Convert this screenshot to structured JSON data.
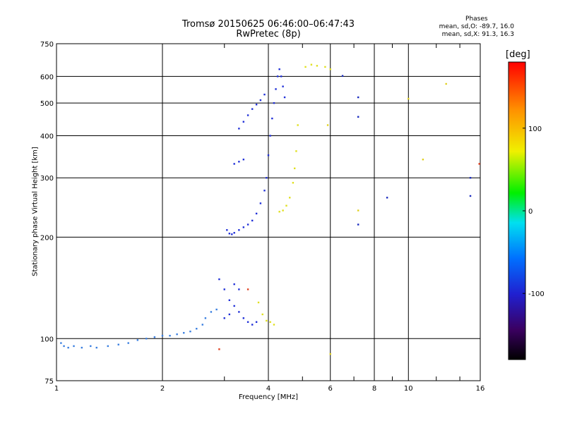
{
  "header": {
    "title_line1": "Tromsø 20150625 06:46:00–06:47:43",
    "title_line2": "RwPretec (8p)",
    "phases_title": "Phases",
    "phases_o": "mean, sd,O: -89.7, 16.0",
    "phases_x": "mean, sd,X:  91.3, 16.3"
  },
  "colorbar": {
    "title": "[deg]",
    "ticks": [
      "100",
      "0",
      "-100"
    ],
    "range": [
      -180,
      180
    ]
  },
  "chart_data": {
    "type": "scatter",
    "title": "Tromsø 20150625 06:46:00–06:47:43",
    "subtitle": "RwPretec (8p)",
    "xlabel": "Frequency [MHz]",
    "ylabel": "Stationary phase Virtual Height [km]",
    "xscale": "log",
    "yscale": "log",
    "xlim": [
      1,
      16
    ],
    "ylim": [
      75,
      750
    ],
    "xticks": [
      1,
      2,
      4,
      6,
      8,
      10,
      16
    ],
    "xtick_labels": [
      "1",
      "2",
      "4",
      "6",
      "8",
      "10",
      "16"
    ],
    "xminor": [
      3,
      5,
      7,
      9,
      12,
      14
    ],
    "yticks": [
      75,
      100,
      200,
      300,
      400,
      500,
      600,
      750
    ],
    "ytick_labels": [
      "75",
      "100",
      "200",
      "300",
      "400",
      "500",
      "600",
      "750"
    ],
    "grid": true,
    "series": [
      {
        "color": "#3a7fe0",
        "points": [
          [
            1.03,
            97
          ],
          [
            1.05,
            95
          ],
          [
            1.08,
            94
          ],
          [
            1.12,
            95
          ],
          [
            1.18,
            94
          ],
          [
            1.25,
            95
          ],
          [
            1.3,
            94
          ],
          [
            1.4,
            95
          ],
          [
            1.5,
            96
          ],
          [
            1.6,
            97
          ],
          [
            1.7,
            99
          ],
          [
            1.8,
            100
          ],
          [
            1.9,
            101
          ],
          [
            2.0,
            102
          ],
          [
            2.1,
            102
          ],
          [
            2.2,
            103
          ],
          [
            2.3,
            104
          ],
          [
            2.4,
            105
          ],
          [
            2.5,
            107
          ],
          [
            2.6,
            110
          ],
          [
            2.65,
            115
          ],
          [
            2.75,
            120
          ],
          [
            2.85,
            122
          ]
        ]
      },
      {
        "color": "#2030d8",
        "points": [
          [
            3.05,
            210
          ],
          [
            3.1,
            205
          ],
          [
            3.15,
            204
          ],
          [
            3.2,
            206
          ],
          [
            3.3,
            210
          ],
          [
            3.4,
            214
          ],
          [
            3.5,
            218
          ],
          [
            3.6,
            224
          ],
          [
            3.7,
            235
          ],
          [
            3.8,
            252
          ],
          [
            3.9,
            275
          ],
          [
            3.95,
            300
          ],
          [
            4.0,
            350
          ],
          [
            4.05,
            400
          ],
          [
            4.1,
            450
          ],
          [
            4.15,
            500
          ],
          [
            4.2,
            550
          ],
          [
            4.25,
            600
          ],
          [
            4.3,
            630
          ],
          [
            4.35,
            600
          ],
          [
            4.4,
            560
          ],
          [
            4.45,
            520
          ],
          [
            3.2,
            330
          ],
          [
            3.3,
            335
          ],
          [
            3.4,
            340
          ],
          [
            3.3,
            420
          ],
          [
            3.4,
            440
          ],
          [
            3.5,
            460
          ],
          [
            3.6,
            480
          ],
          [
            3.7,
            495
          ],
          [
            3.8,
            510
          ],
          [
            3.9,
            530
          ],
          [
            2.9,
            150
          ],
          [
            3.0,
            140
          ],
          [
            3.1,
            130
          ],
          [
            3.2,
            125
          ],
          [
            3.3,
            120
          ],
          [
            3.4,
            115
          ],
          [
            3.5,
            112
          ],
          [
            3.6,
            110
          ],
          [
            3.7,
            112
          ],
          [
            3.0,
            115
          ],
          [
            3.1,
            118
          ],
          [
            3.2,
            145
          ],
          [
            3.3,
            140
          ]
        ]
      },
      {
        "color": "#e0e020",
        "points": [
          [
            3.75,
            128
          ],
          [
            3.85,
            118
          ],
          [
            3.95,
            113
          ],
          [
            4.05,
            112
          ],
          [
            4.15,
            110
          ],
          [
            4.3,
            238
          ],
          [
            4.4,
            240
          ],
          [
            4.5,
            248
          ],
          [
            4.6,
            262
          ],
          [
            4.7,
            290
          ],
          [
            4.75,
            320
          ],
          [
            4.8,
            360
          ],
          [
            4.85,
            430
          ],
          [
            5.1,
            640
          ],
          [
            5.3,
            650
          ],
          [
            5.5,
            645
          ],
          [
            5.8,
            640
          ],
          [
            6.0,
            630
          ]
        ]
      },
      {
        "color": "#1a2bbf",
        "points": [
          [
            6.5,
            602
          ],
          [
            7.2,
            520
          ],
          [
            7.2,
            455
          ],
          [
            7.2,
            218
          ],
          [
            8.7,
            262
          ],
          [
            15.0,
            300
          ],
          [
            15.0,
            265
          ]
        ]
      },
      {
        "color": "#e0d020",
        "points": [
          [
            10.0,
            515
          ],
          [
            11.0,
            340
          ],
          [
            12.8,
            570
          ],
          [
            7.2,
            240
          ],
          [
            5.9,
            430
          ],
          [
            6.0,
            90
          ]
        ]
      },
      {
        "color": "#e04020",
        "points": [
          [
            2.9,
            93
          ],
          [
            3.5,
            140
          ],
          [
            15.9,
            330
          ]
        ]
      }
    ]
  }
}
